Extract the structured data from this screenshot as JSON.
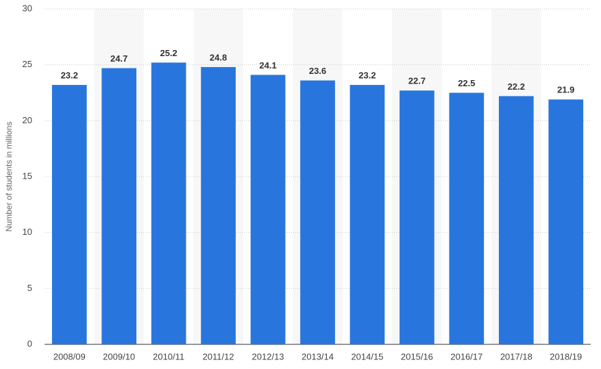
{
  "chart_data": {
    "type": "bar",
    "y_label": "Number of students in millions",
    "categories": [
      "2008/09",
      "2009/10",
      "2010/11",
      "2011/12",
      "2012/13",
      "2013/14",
      "2014/15",
      "2015/16",
      "2016/17",
      "2017/18",
      "2018/19"
    ],
    "values": [
      23.2,
      24.7,
      25.2,
      24.8,
      24.1,
      23.6,
      23.2,
      22.7,
      22.5,
      22.2,
      21.9
    ],
    "color": "#2876dd",
    "ylim": [
      0,
      30
    ],
    "yticks": [
      0,
      5,
      10,
      15,
      20,
      25,
      30
    ],
    "grid": true
  }
}
